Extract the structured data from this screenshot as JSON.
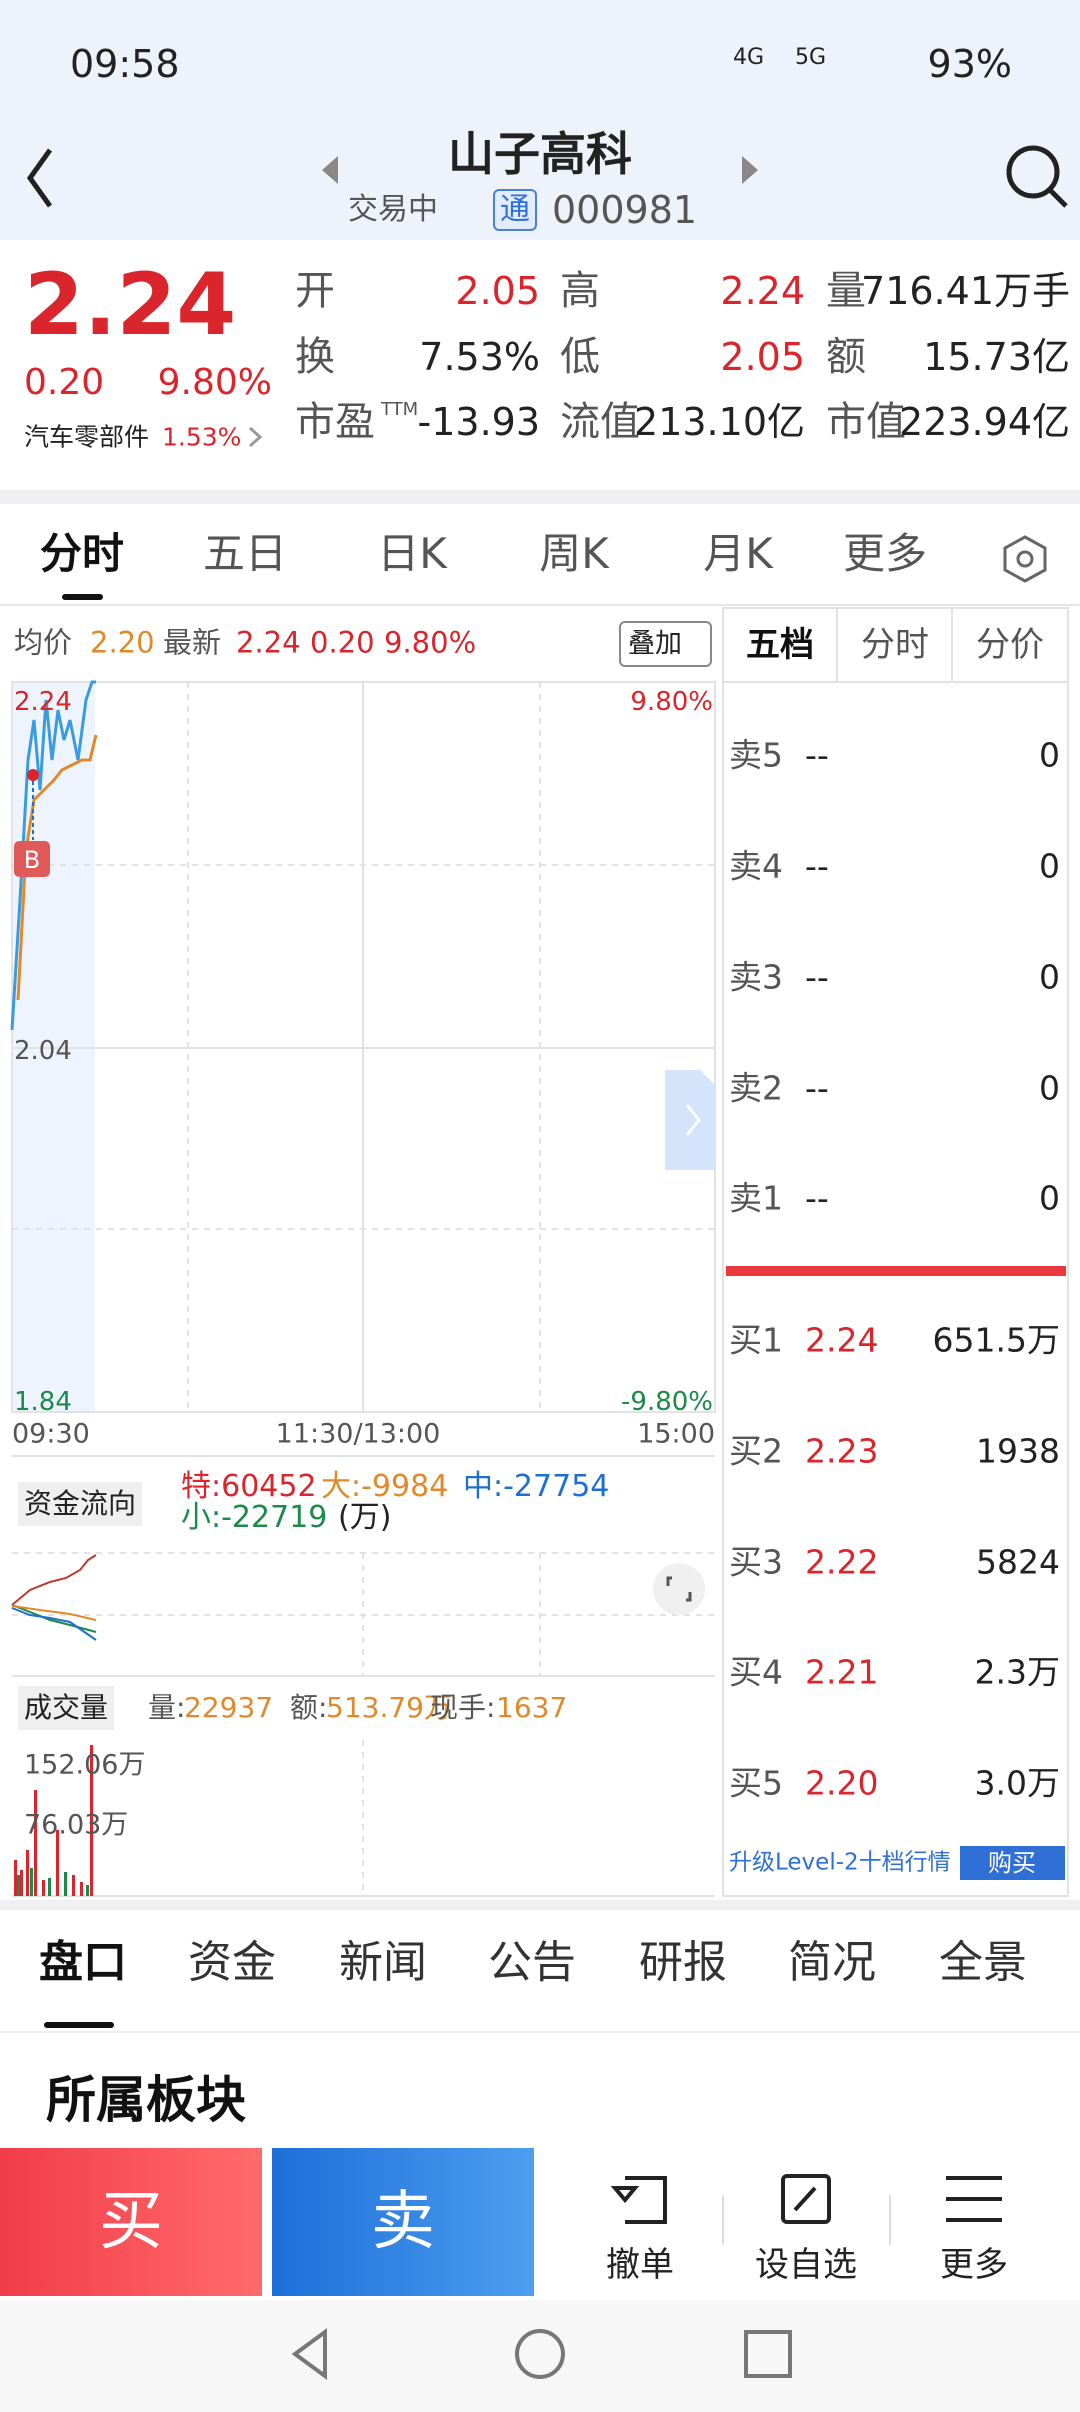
{
  "status_bar": {
    "time": "09:58",
    "net1": "4G",
    "net2": "5G",
    "battery": "93%"
  },
  "header": {
    "title": "山子高科",
    "status": "交易中",
    "badge": "通",
    "code": "000981"
  },
  "quote": {
    "price": "2.24",
    "change": "0.20",
    "change_pct": "9.80%",
    "sector": "汽车零部件",
    "sector_pct": "1.53%",
    "stats": [
      [
        {
          "label": "开",
          "value": "2.05"
        },
        {
          "label": "高",
          "value": "2.24"
        },
        {
          "label": "量",
          "value": "716.41万手"
        }
      ],
      [
        {
          "label": "换",
          "value": "7.53%"
        },
        {
          "label": "低",
          "value": "2.05"
        },
        {
          "label": "额",
          "value": "15.73亿"
        }
      ],
      [
        {
          "label": "市盈",
          "sup": "TTM",
          "value": "-13.93"
        },
        {
          "label": "流值",
          "value": "213.10亿"
        },
        {
          "label": "市值",
          "value": "223.94亿"
        }
      ]
    ]
  },
  "chart_tabs": [
    "分时",
    "五日",
    "日K",
    "周K",
    "月K",
    "更多"
  ],
  "intraday": {
    "avg_label": "均价",
    "avg": "2.20",
    "last_label": "最新",
    "last": "2.24",
    "change": "0.20",
    "pct": "9.80%",
    "overlay": "叠加",
    "marker": "B",
    "y_top": "2.24",
    "y_mid": "2.04",
    "y_bottom": "1.84",
    "pct_top": "9.80%",
    "pct_bottom": "-9.80%",
    "times": [
      "09:30",
      "11:30/13:00",
      "15:00"
    ]
  },
  "fund_flow": {
    "label": "资金流向",
    "items": [
      "特:60452",
      "大:-9984",
      "中:-27754",
      "小:-22719"
    ],
    "unit": "(万)"
  },
  "volume": {
    "label": "成交量",
    "items": [
      {
        "label": "量:",
        "value": "22937"
      },
      {
        "label": "额:",
        "value": "513.79万"
      },
      {
        "label": "现手:",
        "value": "1637"
      }
    ],
    "max": "152.06万",
    "mid": "76.03万"
  },
  "order_book": {
    "tabs": [
      "五档",
      "分时",
      "分价"
    ],
    "sells": [
      {
        "label": "卖5",
        "price": "--",
        "volume": "0"
      },
      {
        "label": "卖4",
        "price": "--",
        "volume": "0"
      },
      {
        "label": "卖3",
        "price": "--",
        "volume": "0"
      },
      {
        "label": "卖2",
        "price": "--",
        "volume": "0"
      },
      {
        "label": "卖1",
        "price": "--",
        "volume": "0"
      }
    ],
    "buys": [
      {
        "label": "买1",
        "price": "2.24",
        "volume": "651.5万"
      },
      {
        "label": "买2",
        "price": "2.23",
        "volume": "1938"
      },
      {
        "label": "买3",
        "price": "2.22",
        "volume": "5824"
      },
      {
        "label": "买4",
        "price": "2.21",
        "volume": "2.3万"
      },
      {
        "label": "买5",
        "price": "2.20",
        "volume": "3.0万"
      }
    ],
    "upgrade": "升级Level-2十档行情",
    "buy_button": "购买"
  },
  "bottom_tabs": [
    "盘口",
    "资金",
    "新闻",
    "公告",
    "研报",
    "简况",
    "全景"
  ],
  "section_title": "所属板块",
  "actions": {
    "buy": "买",
    "sell": "卖",
    "cancel": "撤单",
    "watch": "设自选",
    "more": "更多"
  }
}
